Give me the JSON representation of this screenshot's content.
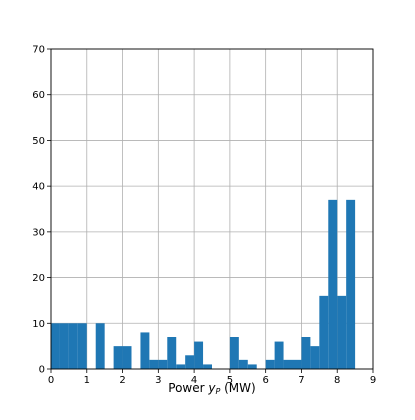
{
  "chart_data": {
    "type": "bar",
    "xlabel": "Power ",
    "xlabel_var": "y",
    "xlabel_sub": "P",
    "xlabel_unit": " (MW)",
    "xlim": [
      0,
      9
    ],
    "ylim": [
      0,
      70
    ],
    "xticks": [
      "0",
      "1",
      "2",
      "3",
      "4",
      "5",
      "6",
      "7",
      "8",
      "9"
    ],
    "yticks": [
      "0",
      "10",
      "20",
      "30",
      "40",
      "50",
      "60",
      "70"
    ],
    "grid": true,
    "bar_color": "#1f77b4",
    "grid_color": "#b0b0b0",
    "bins": [
      {
        "x0": 0.0,
        "x1": 0.25,
        "value": 10
      },
      {
        "x0": 0.25,
        "x1": 0.5,
        "value": 10
      },
      {
        "x0": 0.5,
        "x1": 0.75,
        "value": 10
      },
      {
        "x0": 0.75,
        "x1": 1.0,
        "value": 10
      },
      {
        "x0": 1.25,
        "x1": 1.5,
        "value": 10
      },
      {
        "x0": 1.75,
        "x1": 2.0,
        "value": 5
      },
      {
        "x0": 2.0,
        "x1": 2.25,
        "value": 5
      },
      {
        "x0": 2.5,
        "x1": 2.75,
        "value": 8
      },
      {
        "x0": 2.75,
        "x1": 3.0,
        "value": 2
      },
      {
        "x0": 3.0,
        "x1": 3.25,
        "value": 2
      },
      {
        "x0": 3.25,
        "x1": 3.5,
        "value": 7
      },
      {
        "x0": 3.5,
        "x1": 3.75,
        "value": 1
      },
      {
        "x0": 3.75,
        "x1": 4.0,
        "value": 3
      },
      {
        "x0": 4.0,
        "x1": 4.25,
        "value": 6
      },
      {
        "x0": 4.25,
        "x1": 4.5,
        "value": 1
      },
      {
        "x0": 5.0,
        "x1": 5.25,
        "value": 7
      },
      {
        "x0": 5.25,
        "x1": 5.5,
        "value": 2
      },
      {
        "x0": 5.5,
        "x1": 5.75,
        "value": 1
      },
      {
        "x0": 6.0,
        "x1": 6.25,
        "value": 2
      },
      {
        "x0": 6.25,
        "x1": 6.5,
        "value": 6
      },
      {
        "x0": 6.5,
        "x1": 6.75,
        "value": 2
      },
      {
        "x0": 6.75,
        "x1": 7.0,
        "value": 2
      },
      {
        "x0": 7.0,
        "x1": 7.25,
        "value": 7
      },
      {
        "x0": 7.25,
        "x1": 7.5,
        "value": 5
      },
      {
        "x0": 7.5,
        "x1": 7.75,
        "value": 16
      },
      {
        "x0": 7.75,
        "x1": 8.0,
        "value": 37
      },
      {
        "x0": 8.0,
        "x1": 8.25,
        "value": 16
      },
      {
        "x0": 8.25,
        "x1": 8.5,
        "value": 37
      }
    ]
  }
}
